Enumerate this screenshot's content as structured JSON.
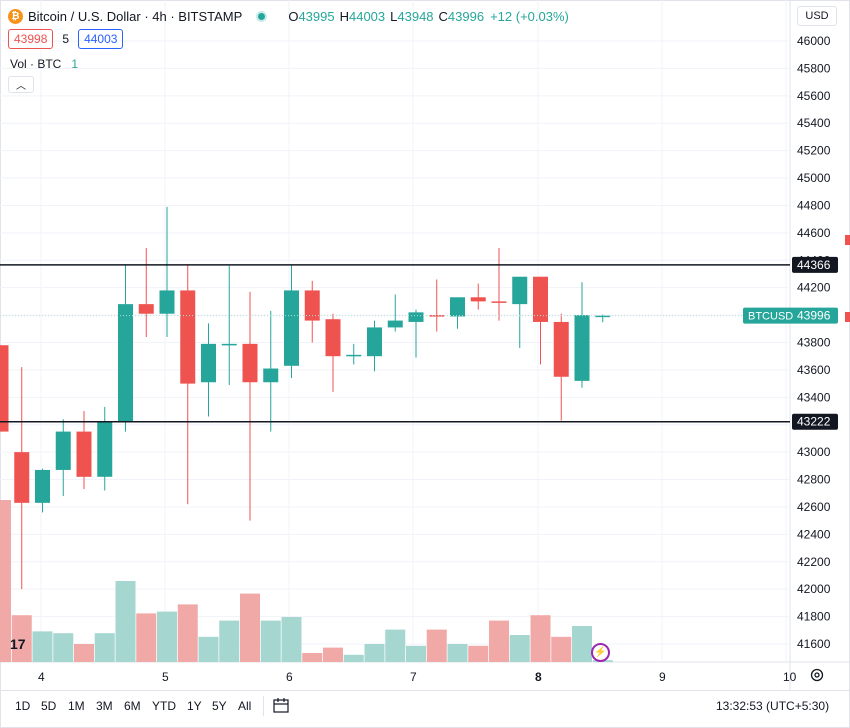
{
  "header": {
    "title": "Bitcoin / U.S. Dollar · 4h · BITSTAMP",
    "icon": "bitcoin-icon",
    "ohlc": [
      {
        "k": "O",
        "v": "43995"
      },
      {
        "k": "H",
        "v": "44003"
      },
      {
        "k": "L",
        "v": "43948"
      },
      {
        "k": "C",
        "v": "43996"
      }
    ],
    "change": "+12 (+0.03%)"
  },
  "bid": "43998",
  "spread": "5",
  "ask": "44003",
  "volume_label": "Vol · BTC",
  "volume_value": "1",
  "currency": "USD",
  "symbol_label": "BTCUSD",
  "price_label": "43996",
  "hline_labels": [
    "44366",
    "43222"
  ],
  "toolbar": {
    "ranges": [
      "1D",
      "5D",
      "1M",
      "3M",
      "6M",
      "YTD",
      "1Y",
      "5Y",
      "All"
    ],
    "time": "13:32:53 (UTC+5:30)"
  },
  "colors": {
    "up": "#26a69a",
    "down": "#ef5350",
    "vol_up": "#a5d6d0",
    "vol_down": "#f0a9a7"
  },
  "chart_data": {
    "type": "candlestick",
    "title": "Bitcoin / U.S. Dollar · 4h · BITSTAMP",
    "ylim": [
      41500,
      46100
    ],
    "y_ticks": [
      41600,
      41800,
      42000,
      42200,
      42400,
      42600,
      42800,
      43000,
      43200,
      43400,
      43600,
      43800,
      44000,
      44200,
      44400,
      44600,
      44800,
      45000,
      45200,
      45400,
      45600,
      45800,
      46000
    ],
    "x_tick_labels": [
      "4",
      "5",
      "6",
      "7",
      "8",
      "9",
      "10"
    ],
    "horizontal_lines": [
      44366,
      43222
    ],
    "last_price": 43996,
    "candles": [
      {
        "o": 43780,
        "h": 43780,
        "l": 43150,
        "c": 43150
      },
      {
        "o": 43000,
        "h": 43620,
        "l": 42000,
        "c": 42630
      },
      {
        "o": 42630,
        "h": 42880,
        "l": 42560,
        "c": 42870
      },
      {
        "o": 42870,
        "h": 43240,
        "l": 42680,
        "c": 43150
      },
      {
        "o": 43150,
        "h": 43300,
        "l": 42730,
        "c": 42820
      },
      {
        "o": 42820,
        "h": 43330,
        "l": 42720,
        "c": 43220
      },
      {
        "o": 43220,
        "h": 44370,
        "l": 43150,
        "c": 44080
      },
      {
        "o": 44080,
        "h": 44490,
        "l": 43840,
        "c": 44010
      },
      {
        "o": 44010,
        "h": 44790,
        "l": 43840,
        "c": 44180
      },
      {
        "o": 44180,
        "h": 44370,
        "l": 42620,
        "c": 43500
      },
      {
        "o": 43510,
        "h": 43940,
        "l": 43260,
        "c": 43790
      },
      {
        "o": 43790,
        "h": 44360,
        "l": 43490,
        "c": 43790
      },
      {
        "o": 43790,
        "h": 44170,
        "l": 42500,
        "c": 43510
      },
      {
        "o": 43510,
        "h": 44030,
        "l": 43150,
        "c": 43610
      },
      {
        "o": 43630,
        "h": 44370,
        "l": 43540,
        "c": 44180
      },
      {
        "o": 44180,
        "h": 44250,
        "l": 43800,
        "c": 43960
      },
      {
        "o": 43970,
        "h": 44010,
        "l": 43440,
        "c": 43700
      },
      {
        "o": 43700,
        "h": 43790,
        "l": 43640,
        "c": 43710
      },
      {
        "o": 43700,
        "h": 43960,
        "l": 43590,
        "c": 43910
      },
      {
        "o": 43910,
        "h": 44150,
        "l": 43880,
        "c": 43960
      },
      {
        "o": 43950,
        "h": 44040,
        "l": 43690,
        "c": 44020
      },
      {
        "o": 44000,
        "h": 44260,
        "l": 43880,
        "c": 43990
      },
      {
        "o": 43990,
        "h": 44110,
        "l": 43900,
        "c": 44130
      },
      {
        "o": 44130,
        "h": 44230,
        "l": 44040,
        "c": 44100
      },
      {
        "o": 44100,
        "h": 44490,
        "l": 43960,
        "c": 44090
      },
      {
        "o": 44080,
        "h": 44270,
        "l": 43760,
        "c": 44280
      },
      {
        "o": 44280,
        "h": 44280,
        "l": 43640,
        "c": 43950
      },
      {
        "o": 43950,
        "h": 44010,
        "l": 43230,
        "c": 43550
      },
      {
        "o": 43520,
        "h": 44240,
        "l": 43470,
        "c": 44000
      },
      {
        "o": 43995,
        "h": 44003,
        "l": 43948,
        "c": 43996
      }
    ],
    "volume": [
      0.9,
      0.26,
      0.17,
      0.16,
      0.1,
      0.16,
      0.45,
      0.27,
      0.28,
      0.32,
      0.14,
      0.23,
      0.38,
      0.23,
      0.25,
      0.05,
      0.08,
      0.04,
      0.1,
      0.18,
      0.09,
      0.18,
      0.1,
      0.09,
      0.23,
      0.15,
      0.26,
      0.14,
      0.2,
      0.01
    ]
  }
}
